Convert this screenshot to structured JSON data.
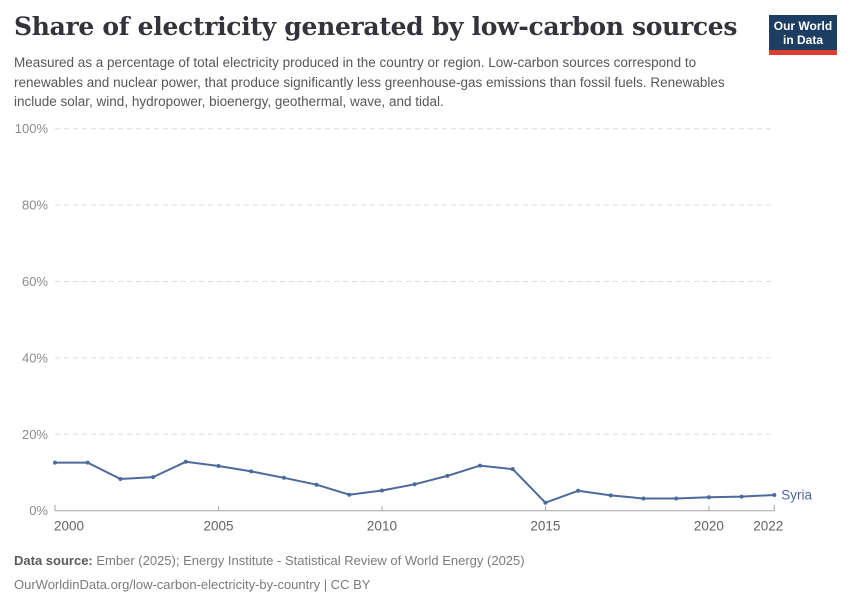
{
  "header": {
    "title": "Share of electricity generated by low-carbon sources",
    "subtitle": "Measured as a percentage of total electricity produced in the country or region. Low-carbon sources correspond to renewables and nuclear power, that produce significantly less greenhouse-gas emissions than fossil fuels. Renewables include solar, wind, hydropower, bioenergy, geothermal, wave, and tidal.",
    "logo": {
      "line1": "Our World",
      "line2": "in Data",
      "bg_color": "#1d3d63",
      "accent_color": "#dc3e32"
    }
  },
  "chart_data": {
    "type": "line",
    "title": "Share of electricity generated by low-carbon sources",
    "xlabel": "",
    "ylabel": "",
    "unit": "%",
    "x": [
      2000,
      2001,
      2002,
      2003,
      2004,
      2005,
      2006,
      2007,
      2008,
      2009,
      2010,
      2011,
      2012,
      2013,
      2014,
      2015,
      2016,
      2017,
      2018,
      2019,
      2020,
      2021,
      2022
    ],
    "series": [
      {
        "name": "Syria",
        "color": "#4C6A9C",
        "values": [
          12.6,
          12.6,
          8.3,
          8.8,
          12.8,
          11.7,
          10.3,
          8.6,
          6.8,
          4.2,
          5.3,
          6.9,
          9.1,
          11.8,
          10.9,
          2.1,
          5.2,
          4.0,
          3.2,
          3.2,
          3.5,
          3.7,
          4.1
        ]
      }
    ],
    "ylim": [
      0,
      100
    ],
    "yticks": [
      0,
      20,
      40,
      60,
      80,
      100
    ],
    "ytick_labels": [
      "0%",
      "20%",
      "40%",
      "60%",
      "80%",
      "100%"
    ],
    "xticks": [
      2000,
      2005,
      2010,
      2015,
      2020,
      2022
    ],
    "grid": "dashed horizontal gridlines",
    "legend_position": "end-of-line label",
    "colors": {
      "gridline": "#dbdde0",
      "axis": "#a5a5a5",
      "ytick_label": "#8b8b8b",
      "xtick_label": "#636363"
    }
  },
  "footer": {
    "data_source_label": "Data source:",
    "data_source_value": "Ember (2025); Energy Institute - Statistical Review of World Energy (2025)",
    "citation": "OurWorldinData.org/low-carbon-electricity-by-country | CC BY"
  }
}
